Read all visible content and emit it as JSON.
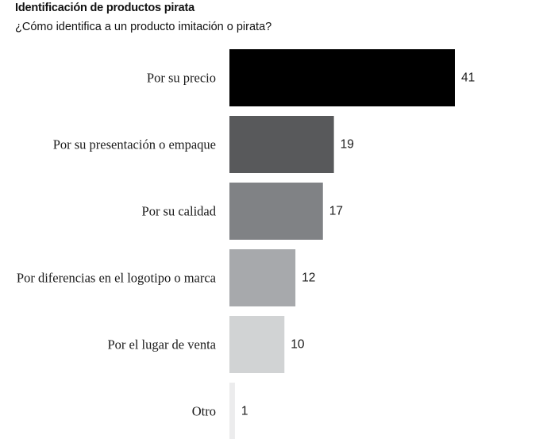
{
  "chart_data": {
    "type": "bar",
    "orientation": "horizontal",
    "title": "Identificación de productos pirata",
    "subtitle": "¿Cómo identifica a un producto imitación o pirata?",
    "categories": [
      "Por su precio",
      "Por su presentación o empaque",
      "Por su calidad",
      "Por diferencias en el logotipo o marca",
      "Por el lugar de venta",
      "Otro"
    ],
    "values": [
      41,
      19,
      17,
      12,
      10,
      1
    ],
    "value_labels": [
      "41",
      "19",
      "17",
      "12",
      "10",
      "1"
    ],
    "colors": [
      "#000000",
      "#58595b",
      "#808285",
      "#a7a9ac",
      "#d1d3d4",
      "#ececed"
    ],
    "xlim": [
      0,
      41
    ],
    "grid": false,
    "legend": "none"
  }
}
